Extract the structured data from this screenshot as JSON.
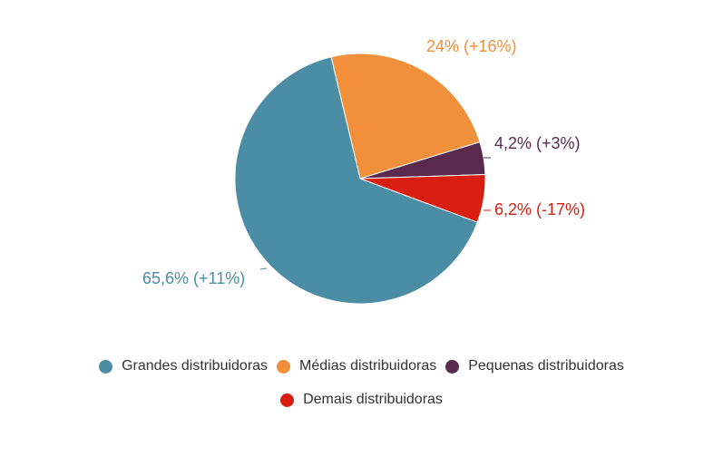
{
  "chart_data": {
    "type": "pie",
    "title": "",
    "start_angle_deg": -13.4,
    "center": [
      397,
      197
    ],
    "radius": 138,
    "slices": [
      {
        "name": "Médias distribuidoras",
        "value": 24.0,
        "label": "24% (+16%)",
        "color": "#F18F3B"
      },
      {
        "name": "Pequenas distribuidoras",
        "value": 4.2,
        "label": "4,2% (+3%)",
        "color": "#5A2A4E"
      },
      {
        "name": "Demais distribuidoras",
        "value": 6.2,
        "label": "6,2% (-17%)",
        "color": "#D91F11"
      },
      {
        "name": "Grandes distribuidoras",
        "value": 65.6,
        "label": "65,6% (+11%)",
        "color": "#4C8DA6"
      }
    ],
    "legend": {
      "position": "bottom",
      "entries": [
        {
          "label": "Grandes distribuidoras",
          "color": "#4C8DA6"
        },
        {
          "label": "Médias distribuidoras",
          "color": "#F18F3B"
        },
        {
          "label": "Pequenas distribuidoras",
          "color": "#5A2A4E"
        },
        {
          "label": "Demais distribuidoras",
          "color": "#D91F11"
        }
      ]
    }
  }
}
